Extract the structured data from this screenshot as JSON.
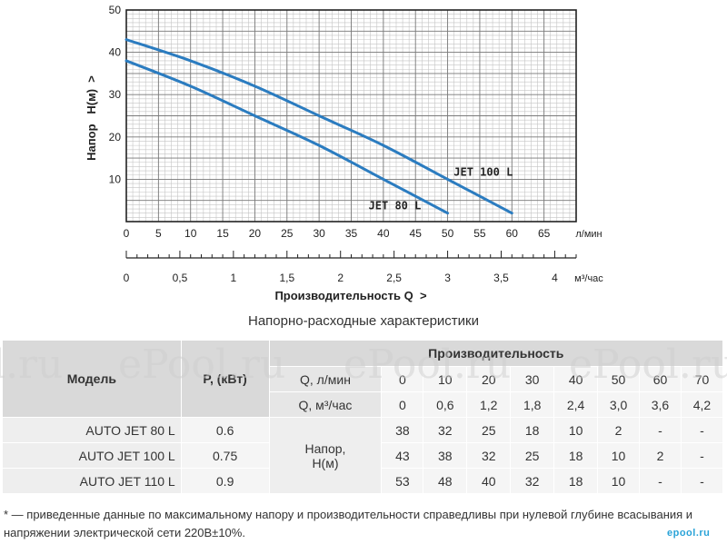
{
  "chart_data": {
    "type": "line",
    "ylabel": "Напор   H(м)  >",
    "xlabel": "Производительность Q  >",
    "x_unit_top": "л/мин",
    "x_unit_bottom": "м³/час",
    "xlim": [
      0,
      70
    ],
    "ylim": [
      0,
      50
    ],
    "x_ticks": [
      "0",
      "5",
      "10",
      "15",
      "20",
      "25",
      "30",
      "35",
      "40",
      "45",
      "50",
      "55",
      "60",
      "65"
    ],
    "x2_ticks": [
      "0",
      "0,5",
      "1",
      "1,5",
      "2",
      "2,5",
      "3",
      "3,5",
      "4"
    ],
    "y_ticks": [
      "10",
      "20",
      "30",
      "40",
      "50"
    ],
    "grid": true,
    "series": [
      {
        "name": "JET 80 L",
        "color": "#2b7cc0",
        "x": [
          0,
          10,
          20,
          30,
          40,
          50
        ],
        "y": [
          38,
          32,
          25,
          18,
          10,
          2
        ]
      },
      {
        "name": "JET 100 L",
        "color": "#2b7cc0",
        "x": [
          0,
          10,
          20,
          30,
          40,
          50,
          60
        ],
        "y": [
          43,
          38,
          32,
          25,
          18,
          10,
          2
        ]
      }
    ]
  },
  "caption": "Напорно-расходные характеристики",
  "table": {
    "h_model": "Модель",
    "h_power": "P, (кВт)",
    "h_perf": "Производительность",
    "q_lmin_label": "Q, л/мин",
    "q_m3h_label": "Q, м³/час",
    "q_lmin": [
      "0",
      "10",
      "20",
      "30",
      "40",
      "50",
      "60",
      "70"
    ],
    "q_m3h": [
      "0",
      "0,6",
      "1,2",
      "1,8",
      "2,4",
      "3,0",
      "3,6",
      "4,2"
    ],
    "head_label": "Напор,\nH(м)",
    "rows": [
      {
        "model": "AUTO JET 80 L",
        "power": "0.6",
        "h": [
          "38",
          "32",
          "25",
          "18",
          "10",
          "2",
          "-",
          "-"
        ]
      },
      {
        "model": "AUTO JET 100 L",
        "power": "0.75",
        "h": [
          "43",
          "38",
          "32",
          "25",
          "18",
          "10",
          "2",
          "-"
        ]
      },
      {
        "model": "AUTO JET 110 L",
        "power": "0.9",
        "h": [
          "53",
          "48",
          "40",
          "32",
          "18",
          "10",
          "-",
          "-"
        ]
      }
    ]
  },
  "footnote": "* — приведенные данные по максимальному напору и производительности справедливы при нулевой глубине всасывания и напряжении электрической сети 220В±10%.",
  "watermarks": [
    "l.ru",
    "ePool.ru",
    "ePool.ru",
    "ePool.ru",
    "ePool.ru",
    "ePool.ru"
  ],
  "logo": "epool.ru"
}
